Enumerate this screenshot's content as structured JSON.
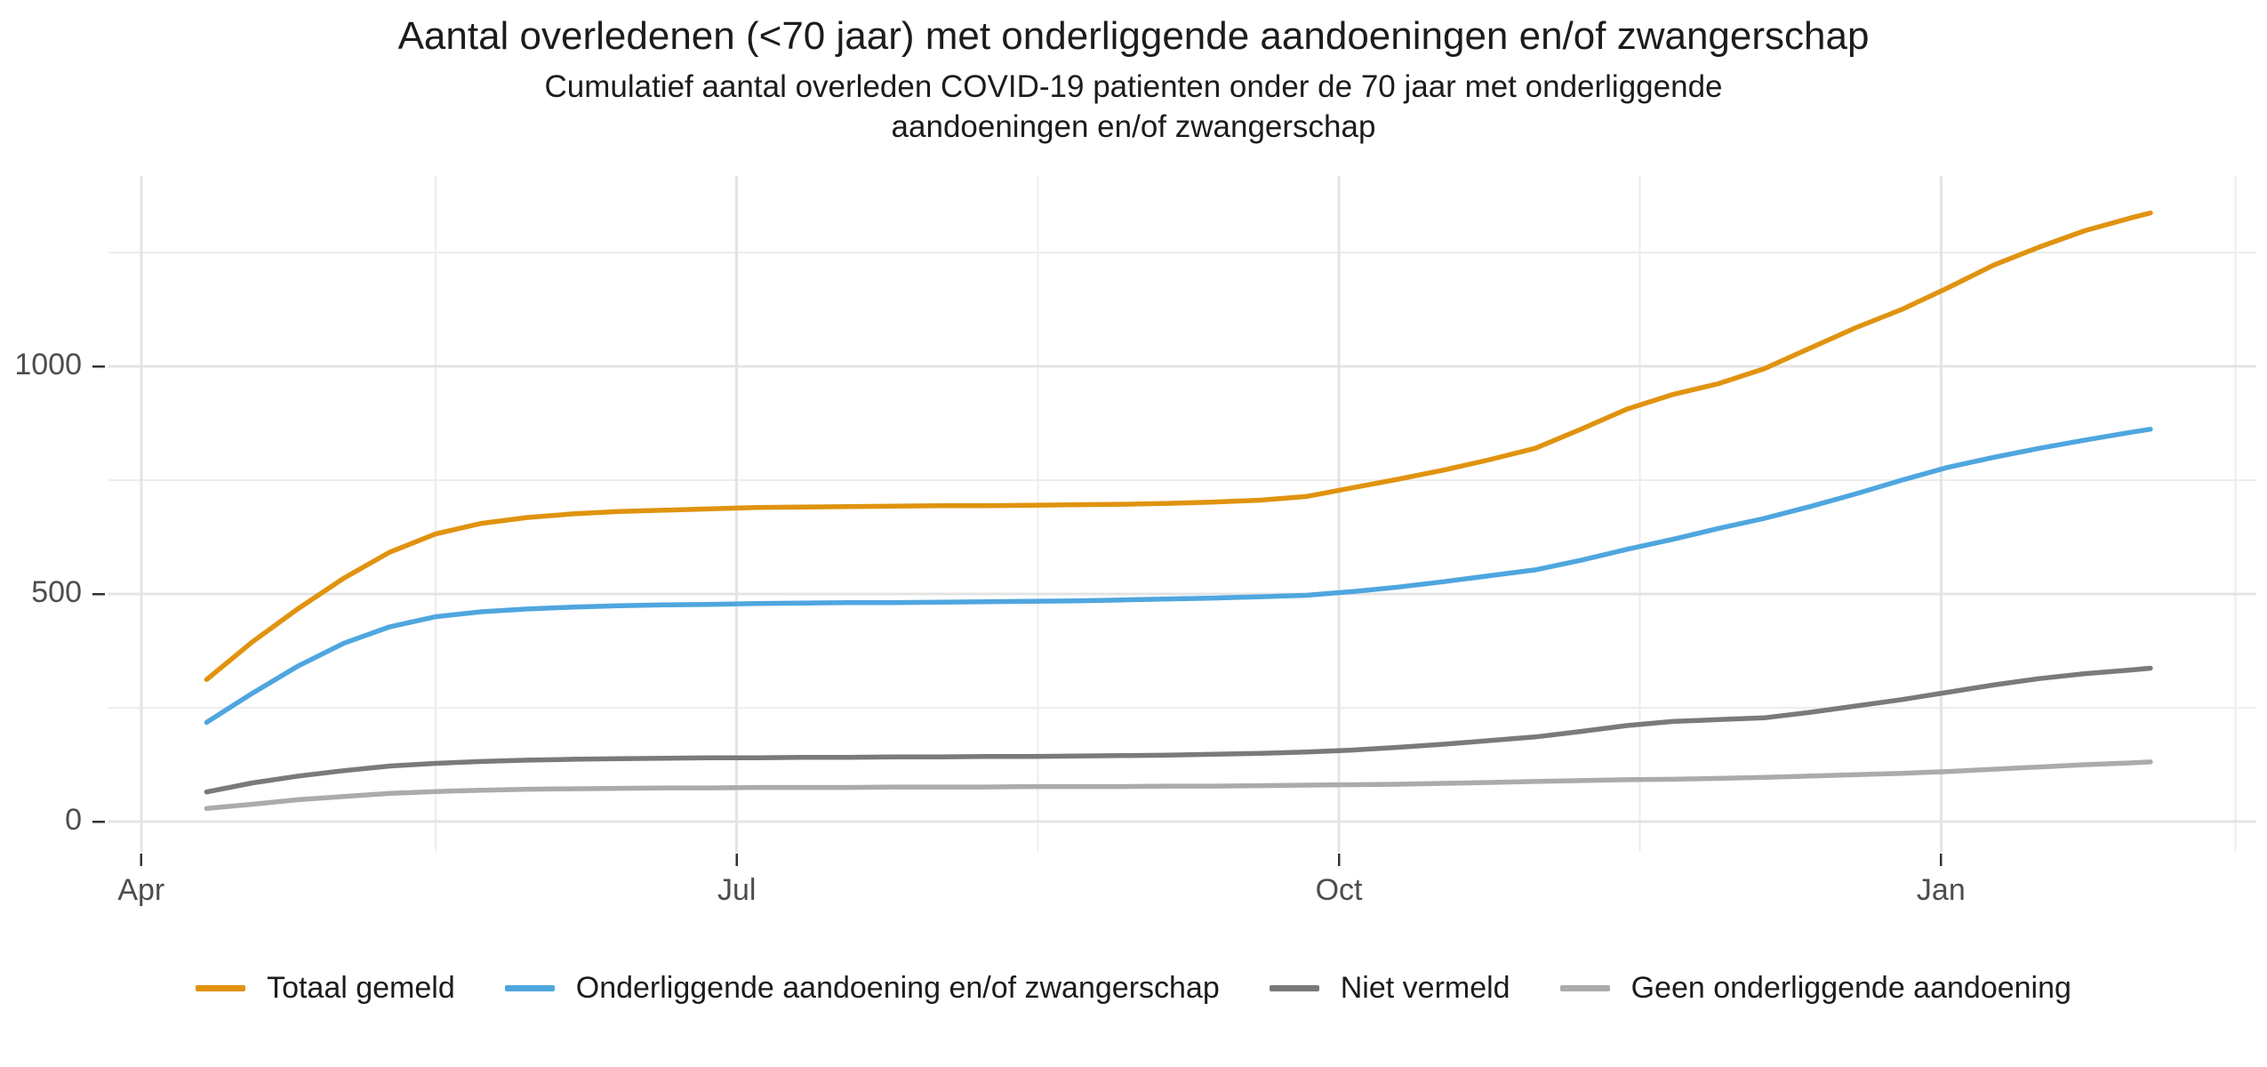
{
  "header": {
    "title": "Aantal overledenen (<70 jaar) met onderliggende aandoeningen en/of zwangerschap",
    "subtitle_lines": [
      "Cumulatief aantal overleden COVID-19 patienten onder de 70 jaar met onderliggende",
      "aandoeningen en/of zwangerschap"
    ]
  },
  "legend": {
    "position": "bottom",
    "items": [
      {
        "label": "Totaal gemeld",
        "color": "#E0930F",
        "series": "totaal_gemeld"
      },
      {
        "label": "Onderliggende aandoening en/of zwangerschap",
        "color": "#4FA6DF",
        "series": "onderliggende_aandoening"
      },
      {
        "label": "Niet vermeld",
        "color": "#7A7A7A",
        "series": "niet_vermeld"
      },
      {
        "label": "Geen onderliggende aandoening",
        "color": "#ABABAB",
        "series": "geen_onderliggende_aandoening"
      }
    ]
  },
  "colors": {
    "orange": "#E0930F",
    "blue": "#4FA6DF",
    "dark_gray": "#7A7A7A",
    "light_gray": "#ABABAB",
    "grid_major": "#E4E4E4",
    "grid_minor": "#EDEDED",
    "tick": "#333333",
    "axis_text": "#4D4D4D",
    "title_text": "#1C1C1C"
  },
  "chart_data": {
    "type": "line",
    "title": "Aantal overledenen (<70 jaar) met onderliggende aandoeningen en/of zwangerschap",
    "subtitle": "Cumulatief aantal overleden COVID-19 patienten onder de 70 jaar met onderliggende aandoeningen en/of zwangerschap",
    "xlabel": "",
    "ylabel": "",
    "ylim": [
      0,
      1390
    ],
    "grid": true,
    "legend_position": "bottom",
    "x_axis": {
      "tick_labels": [
        "Apr",
        "Jul",
        "Oct",
        "Jan"
      ],
      "tick_dates": [
        "2020-04-01",
        "2020-07-01",
        "2020-10-01",
        "2021-01-01"
      ],
      "minor_dates": [
        "2020-05-16",
        "2020-08-16",
        "2020-11-16",
        "2021-02-15"
      ]
    },
    "y_axis": {
      "tick_values": [
        0,
        500,
        1000
      ],
      "minor_values": [
        250,
        750,
        1250
      ]
    },
    "x": [
      "2020-04-11",
      "2020-04-18",
      "2020-04-25",
      "2020-05-02",
      "2020-05-09",
      "2020-05-16",
      "2020-05-23",
      "2020-05-30",
      "2020-06-06",
      "2020-06-13",
      "2020-06-20",
      "2020-06-27",
      "2020-07-04",
      "2020-07-11",
      "2020-07-18",
      "2020-07-25",
      "2020-08-01",
      "2020-08-08",
      "2020-08-15",
      "2020-08-22",
      "2020-08-29",
      "2020-09-05",
      "2020-09-12",
      "2020-09-19",
      "2020-09-26",
      "2020-10-03",
      "2020-10-10",
      "2020-10-17",
      "2020-10-24",
      "2020-10-31",
      "2020-11-07",
      "2020-11-14",
      "2020-11-21",
      "2020-11-28",
      "2020-12-05",
      "2020-12-12",
      "2020-12-19",
      "2020-12-26",
      "2021-01-02",
      "2021-01-09",
      "2021-01-16",
      "2021-01-23",
      "2021-01-30",
      "2021-02-02"
    ],
    "series": [
      {
        "name": "Totaal gemeld",
        "key": "totaal_gemeld",
        "color": "#E0930F",
        "values": [
          312,
          395,
          468,
          535,
          592,
          632,
          655,
          668,
          676,
          681,
          684,
          687,
          690,
          691,
          692,
          693,
          694,
          694,
          695,
          696,
          697,
          699,
          702,
          706,
          714,
          733,
          752,
          772,
          795,
          820,
          862,
          906,
          938,
          962,
          995,
          1040,
          1085,
          1125,
          1172,
          1222,
          1262,
          1298,
          1326,
          1337
        ]
      },
      {
        "name": "Onderliggende aandoening en/of zwangerschap",
        "key": "onderliggende_aandoening",
        "color": "#4FA6DF",
        "values": [
          218,
          282,
          342,
          392,
          428,
          450,
          461,
          467,
          471,
          474,
          476,
          477,
          479,
          480,
          481,
          481,
          482,
          483,
          484,
          485,
          487,
          489,
          491,
          494,
          497,
          505,
          515,
          527,
          540,
          553,
          574,
          598,
          620,
          644,
          666,
          692,
          720,
          750,
          778,
          800,
          820,
          838,
          855,
          862
        ]
      },
      {
        "name": "Niet vermeld",
        "key": "niet_vermeld",
        "color": "#7A7A7A",
        "values": [
          65,
          85,
          100,
          112,
          122,
          128,
          132,
          135,
          137,
          138,
          139,
          140,
          140,
          141,
          141,
          142,
          142,
          143,
          143,
          144,
          145,
          146,
          148,
          150,
          153,
          157,
          163,
          170,
          178,
          186,
          198,
          211,
          220,
          224,
          228,
          240,
          254,
          268,
          284,
          300,
          314,
          325,
          333,
          337
        ]
      },
      {
        "name": "Geen onderliggende aandoening",
        "key": "geen_onderliggende_aandoening",
        "color": "#ABABAB",
        "values": [
          29,
          38,
          48,
          55,
          62,
          66,
          69,
          71,
          72,
          73,
          74,
          74,
          75,
          75,
          75,
          76,
          76,
          76,
          77,
          77,
          77,
          78,
          78,
          79,
          80,
          81,
          82,
          84,
          86,
          88,
          90,
          92,
          93,
          95,
          97,
          100,
          103,
          106,
          110,
          115,
          120,
          125,
          129,
          131
        ]
      }
    ]
  }
}
